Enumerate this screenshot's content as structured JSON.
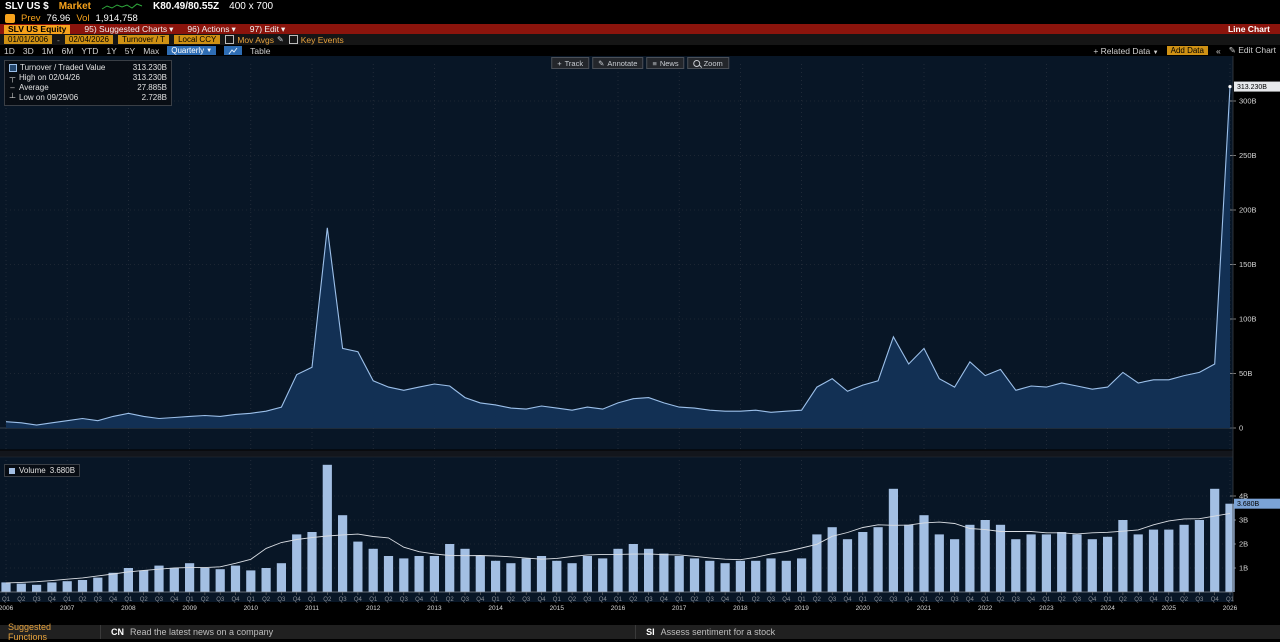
{
  "topbar": {
    "ticker": "SLV US $",
    "market": "Market",
    "quote": "K80.49/80.55Z",
    "size": "400 x 700",
    "prev_label": "Prev",
    "prev_value": "76.96",
    "vol_label": "Vol",
    "vol_value": "1,914,758"
  },
  "menubar": {
    "security": "SLV US Equity",
    "items": [
      {
        "label": "95) Suggested Charts"
      },
      {
        "label": "96) Actions"
      },
      {
        "label": "97) Edit"
      }
    ],
    "title": "Line Chart"
  },
  "toolbar": {
    "start_date": "01/01/2006",
    "range_sep": "-",
    "end_date": "02/04/2026",
    "field": "Turnover / T",
    "currency": "Local CCY",
    "mov_avgs": "Mov Avgs",
    "key_events": "Key Events"
  },
  "tabsrow": {
    "periods": [
      "1D",
      "3D",
      "1M",
      "6M",
      "YTD",
      "1Y",
      "5Y",
      "Max"
    ],
    "frequency": "Quarterly",
    "table": "Table",
    "related_data": "+ Related Data",
    "add_data": "Add Data",
    "edit_chart": "Edit Chart"
  },
  "chart_buttons": [
    {
      "icon": "+",
      "label": "Track"
    },
    {
      "icon": "✎",
      "label": "Annotate"
    },
    {
      "icon": "≡",
      "label": "News"
    },
    {
      "icon": "",
      "label": "Zoom"
    }
  ],
  "legend": {
    "series": "Turnover / Traded Value",
    "series_value": "313.230B",
    "high_label": "High on 02/04/26",
    "high_value": "313.230B",
    "avg_label": "Average",
    "avg_value": "27.885B",
    "low_label": "Low on 09/29/06",
    "low_value": "2.728B"
  },
  "volume_legend": {
    "label": "Volume",
    "value": "3.680B"
  },
  "statusbar": {
    "suggested": "Suggested Functions",
    "items": [
      {
        "code": "CN",
        "desc": "Read the latest news on a company"
      },
      {
        "code": "SI",
        "desc": "Assess sentiment for a stock"
      }
    ]
  },
  "icons": {
    "dropdown": "▼",
    "menu_arrow": "▾",
    "pencil": "✎",
    "chevrons_left": "«",
    "high_marker": "┬",
    "avg_marker": "–",
    "low_marker": "┴"
  },
  "colors": {
    "amber": "#f6a21c",
    "red_bar": "#8b140c",
    "chart_bg": "#081626",
    "area_fill": "#123054",
    "line": "#9cc0ea",
    "bar": "#a3bfe3",
    "ma_line": "#d9dde3"
  },
  "chart_data": [
    {
      "type": "area",
      "title": "Turnover / Traded Value (quarterly, billions)",
      "years": [
        2006,
        2007,
        2008,
        2009,
        2010,
        2011,
        2012,
        2013,
        2014,
        2015,
        2016,
        2017,
        2018,
        2019,
        2020,
        2021,
        2022,
        2023,
        2024,
        2025,
        2026
      ],
      "x_tick_pattern": [
        "Q1",
        "Q2",
        "Q3",
        "Q4"
      ],
      "values": [
        5.8,
        4.8,
        2.7,
        4.8,
        6.7,
        8.7,
        6.7,
        10.6,
        13.5,
        10.6,
        8.7,
        9.6,
        10.6,
        11.5,
        10.6,
        12.5,
        13.5,
        15.4,
        19.2,
        49.0,
        55.8,
        183.7,
        73.0,
        70.0,
        43.3,
        37.5,
        34.6,
        37.5,
        40.4,
        38.5,
        27.9,
        23.0,
        21.2,
        18.3,
        17.3,
        20.2,
        18.3,
        16.3,
        19.2,
        17.3,
        23.0,
        26.9,
        27.9,
        23.0,
        19.2,
        18.3,
        16.3,
        15.4,
        15.4,
        16.3,
        14.4,
        15.4,
        16.3,
        37.5,
        45.2,
        33.7,
        39.4,
        43.3,
        83.7,
        58.7,
        73.0,
        45.2,
        37.5,
        60.6,
        48.1,
        53.8,
        34.6,
        38.5,
        37.5,
        41.3,
        38.5,
        35.6,
        37.5,
        51.0,
        41.3,
        44.2,
        44.2,
        48.1,
        51.0,
        58.7,
        313.23
      ],
      "ylim": [
        0,
        330
      ],
      "y_ticks": [
        0,
        50,
        100,
        150,
        200,
        250,
        300
      ],
      "y_tick_labels": [
        "0",
        "50B",
        "100B",
        "150B",
        "200B",
        "250B",
        "300B"
      ],
      "last_label": "313.230B",
      "high": {
        "date": "02/04/26",
        "value": 313.23
      },
      "average": 27.885,
      "low": {
        "date": "09/29/06",
        "value": 2.728
      },
      "grid": true,
      "legend_position": "top-left"
    },
    {
      "type": "bar",
      "title": "Volume (quarterly, billions of shares)",
      "values": [
        0.4,
        0.35,
        0.3,
        0.4,
        0.45,
        0.5,
        0.6,
        0.8,
        1.0,
        0.9,
        1.1,
        1.0,
        1.2,
        1.0,
        0.95,
        1.1,
        0.9,
        1.0,
        1.2,
        2.4,
        2.5,
        5.3,
        3.2,
        2.1,
        1.8,
        1.5,
        1.4,
        1.5,
        1.5,
        2.0,
        1.8,
        1.5,
        1.3,
        1.2,
        1.4,
        1.5,
        1.3,
        1.2,
        1.5,
        1.4,
        1.8,
        2.0,
        1.8,
        1.6,
        1.5,
        1.4,
        1.3,
        1.2,
        1.3,
        1.3,
        1.4,
        1.3,
        1.4,
        2.4,
        2.7,
        2.2,
        2.5,
        2.7,
        4.3,
        2.8,
        3.2,
        2.4,
        2.2,
        2.8,
        3.0,
        2.8,
        2.2,
        2.4,
        2.4,
        2.5,
        2.4,
        2.2,
        2.3,
        3.0,
        2.4,
        2.6,
        2.6,
        2.8,
        3.0,
        4.3,
        3.68
      ],
      "ylim": [
        0,
        5.6
      ],
      "y_ticks": [
        1,
        2,
        3,
        4
      ],
      "y_tick_labels": [
        "1B",
        "2B",
        "3B",
        "4B"
      ],
      "last_label": "3.680B",
      "overlay": "moving-average-line"
    }
  ]
}
